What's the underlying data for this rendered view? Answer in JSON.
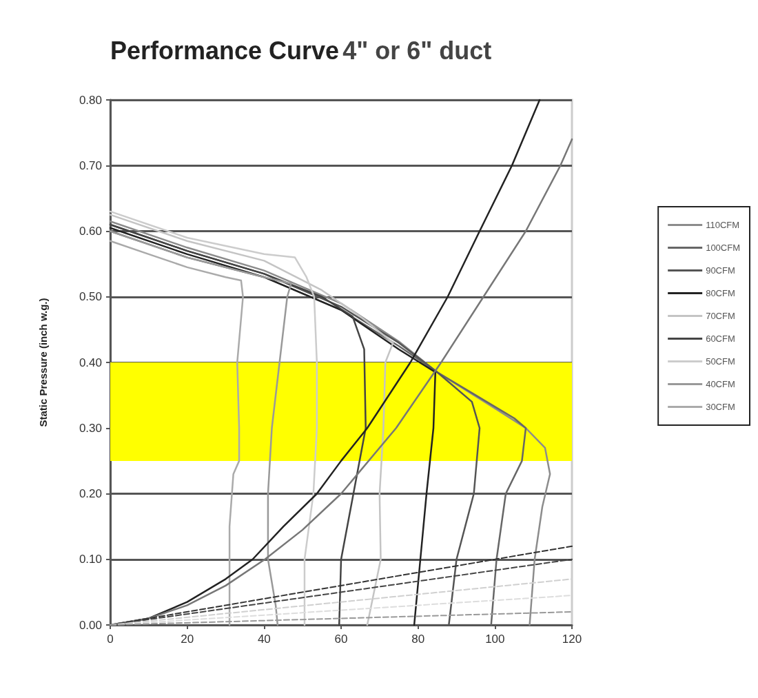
{
  "chart_data": {
    "type": "line",
    "title": "Performance Curve",
    "subtitle": "4\" or 6\" duct",
    "ylabel": "Static Pressure (inch w.g.)",
    "xlim": [
      0,
      120
    ],
    "xticks": [
      0,
      20,
      40,
      60,
      80,
      100,
      120
    ],
    "ylim": [
      0,
      0.8
    ],
    "yticks": [
      {
        "value": 0,
        "label": "0.00"
      },
      {
        "value": 0.1,
        "label": "0.10"
      },
      {
        "value": 0.2,
        "label": "0.20"
      },
      {
        "value": 0.3,
        "label": "0.30"
      },
      {
        "value": 0.4,
        "label": "0.40"
      },
      {
        "value": 0.5,
        "label": "0.50"
      },
      {
        "value": 0.6,
        "label": "0.60"
      },
      {
        "value": 0.7,
        "label": "0.70"
      },
      {
        "value": 0.8,
        "label": "0.80"
      }
    ],
    "grid": "y",
    "legend": "right",
    "marker": "none",
    "line_style": "solid",
    "bands": [
      {
        "axis": "y",
        "from": 0.25,
        "to": 0.4,
        "color": "#ffff00"
      }
    ],
    "series": [
      {
        "name": "110CFM",
        "color": "#8c8c8c",
        "x": [
          0,
          20,
          40,
          60,
          75,
          85,
          100,
          108,
          113,
          114.3,
          112.3,
          110.3,
          109
        ],
        "values": [
          0.615,
          0.575,
          0.54,
          0.49,
          0.432,
          0.385,
          0.33,
          0.3,
          0.27,
          0.23,
          0.18,
          0.1,
          0
        ]
      },
      {
        "name": "100CFM",
        "color": "#666666",
        "x": [
          0,
          20,
          40,
          60,
          75,
          85,
          95,
          105,
          108,
          107,
          102.8,
          100.4,
          99
        ],
        "values": [
          0.6,
          0.56,
          0.53,
          0.48,
          0.425,
          0.385,
          0.35,
          0.315,
          0.3,
          0.25,
          0.2,
          0.1,
          0
        ]
      },
      {
        "name": "90CFM",
        "color": "#555555",
        "x": [
          0,
          20,
          40,
          60,
          75,
          85,
          94,
          96,
          94.5,
          90,
          88
        ],
        "values": [
          0.61,
          0.57,
          0.535,
          0.485,
          0.43,
          0.385,
          0.34,
          0.3,
          0.2,
          0.1,
          0
        ]
      },
      {
        "name": "80CFM",
        "color": "#222222",
        "x": [
          0,
          20,
          40,
          60,
          75,
          84.5,
          84,
          82.2,
          80.6,
          79
        ],
        "values": [
          0.605,
          0.565,
          0.53,
          0.48,
          0.42,
          0.385,
          0.3,
          0.2,
          0.1,
          0
        ]
      },
      {
        "name": "70CFM",
        "color": "#c4c4c4",
        "x": [
          0,
          20,
          40,
          55,
          65,
          73.5,
          71.5,
          71,
          70,
          70.3,
          66.8
        ],
        "values": [
          0.625,
          0.585,
          0.555,
          0.51,
          0.47,
          0.43,
          0.4,
          0.3,
          0.2,
          0.1,
          0
        ]
      },
      {
        "name": "60CFM",
        "color": "#444444",
        "x": [
          0,
          20,
          40,
          55,
          63,
          66,
          66.4,
          63.2,
          60,
          59.5
        ],
        "values": [
          0.61,
          0.57,
          0.535,
          0.5,
          0.47,
          0.42,
          0.3,
          0.2,
          0.1,
          0
        ]
      },
      {
        "name": "50CFM",
        "color": "#cccccc",
        "x": [
          0,
          20,
          40,
          48,
          51,
          53,
          53.7,
          53.7,
          52.8,
          50.5,
          50.5
        ],
        "values": [
          0.63,
          0.59,
          0.565,
          0.56,
          0.53,
          0.5,
          0.4,
          0.3,
          0.2,
          0.1,
          0
        ]
      },
      {
        "name": "40CFM",
        "color": "#999999",
        "x": [
          0,
          20,
          40,
          47,
          46,
          44,
          42,
          41,
          41,
          43,
          43.5
        ],
        "values": [
          0.6,
          0.56,
          0.53,
          0.52,
          0.5,
          0.4,
          0.3,
          0.2,
          0.1,
          0.03,
          0
        ]
      },
      {
        "name": "30CFM",
        "color": "#aaaaaa",
        "x": [
          0,
          10,
          20,
          30,
          34,
          34.5,
          33,
          33.5,
          33.5,
          32,
          31,
          31,
          31
        ],
        "values": [
          0.585,
          0.565,
          0.545,
          0.53,
          0.525,
          0.5,
          0.4,
          0.3,
          0.25,
          0.23,
          0.15,
          0.05,
          0
        ]
      },
      {
        "color": "#222222",
        "x": [
          0,
          10,
          20,
          30,
          37,
          45,
          53.7,
          60,
          66.8,
          78,
          87.7,
          96,
          104.4,
          111.6
        ],
        "values": [
          0,
          0.01,
          0.035,
          0.07,
          0.1,
          0.15,
          0.2,
          0.25,
          0.3,
          0.4,
          0.5,
          0.6,
          0.7,
          0.8
        ]
      },
      {
        "color": "#777777",
        "x": [
          0,
          10,
          20,
          30,
          40.2,
          50,
          60,
          74.3,
          86,
          97,
          108,
          117,
          120
        ],
        "values": [
          0,
          0.01,
          0.03,
          0.06,
          0.1,
          0.145,
          0.2,
          0.3,
          0.4,
          0.5,
          0.6,
          0.7,
          0.74
        ]
      },
      {
        "color": "#333333",
        "line_style": "dashed",
        "x": [
          0,
          120
        ],
        "values": [
          0,
          0.12
        ]
      },
      {
        "color": "#444444",
        "line_style": "dashed",
        "x": [
          0,
          120
        ],
        "values": [
          0,
          0.1
        ]
      },
      {
        "color": "#d0d0d0",
        "line_style": "dashed",
        "x": [
          0,
          120
        ],
        "values": [
          0,
          0.07
        ]
      },
      {
        "color": "#dddddd",
        "line_style": "dashed",
        "x": [
          0,
          120
        ],
        "values": [
          0,
          0.045
        ]
      },
      {
        "color": "#999999",
        "line_style": "dashed",
        "x": [
          0,
          120
        ],
        "values": [
          0,
          0.02
        ]
      }
    ]
  }
}
